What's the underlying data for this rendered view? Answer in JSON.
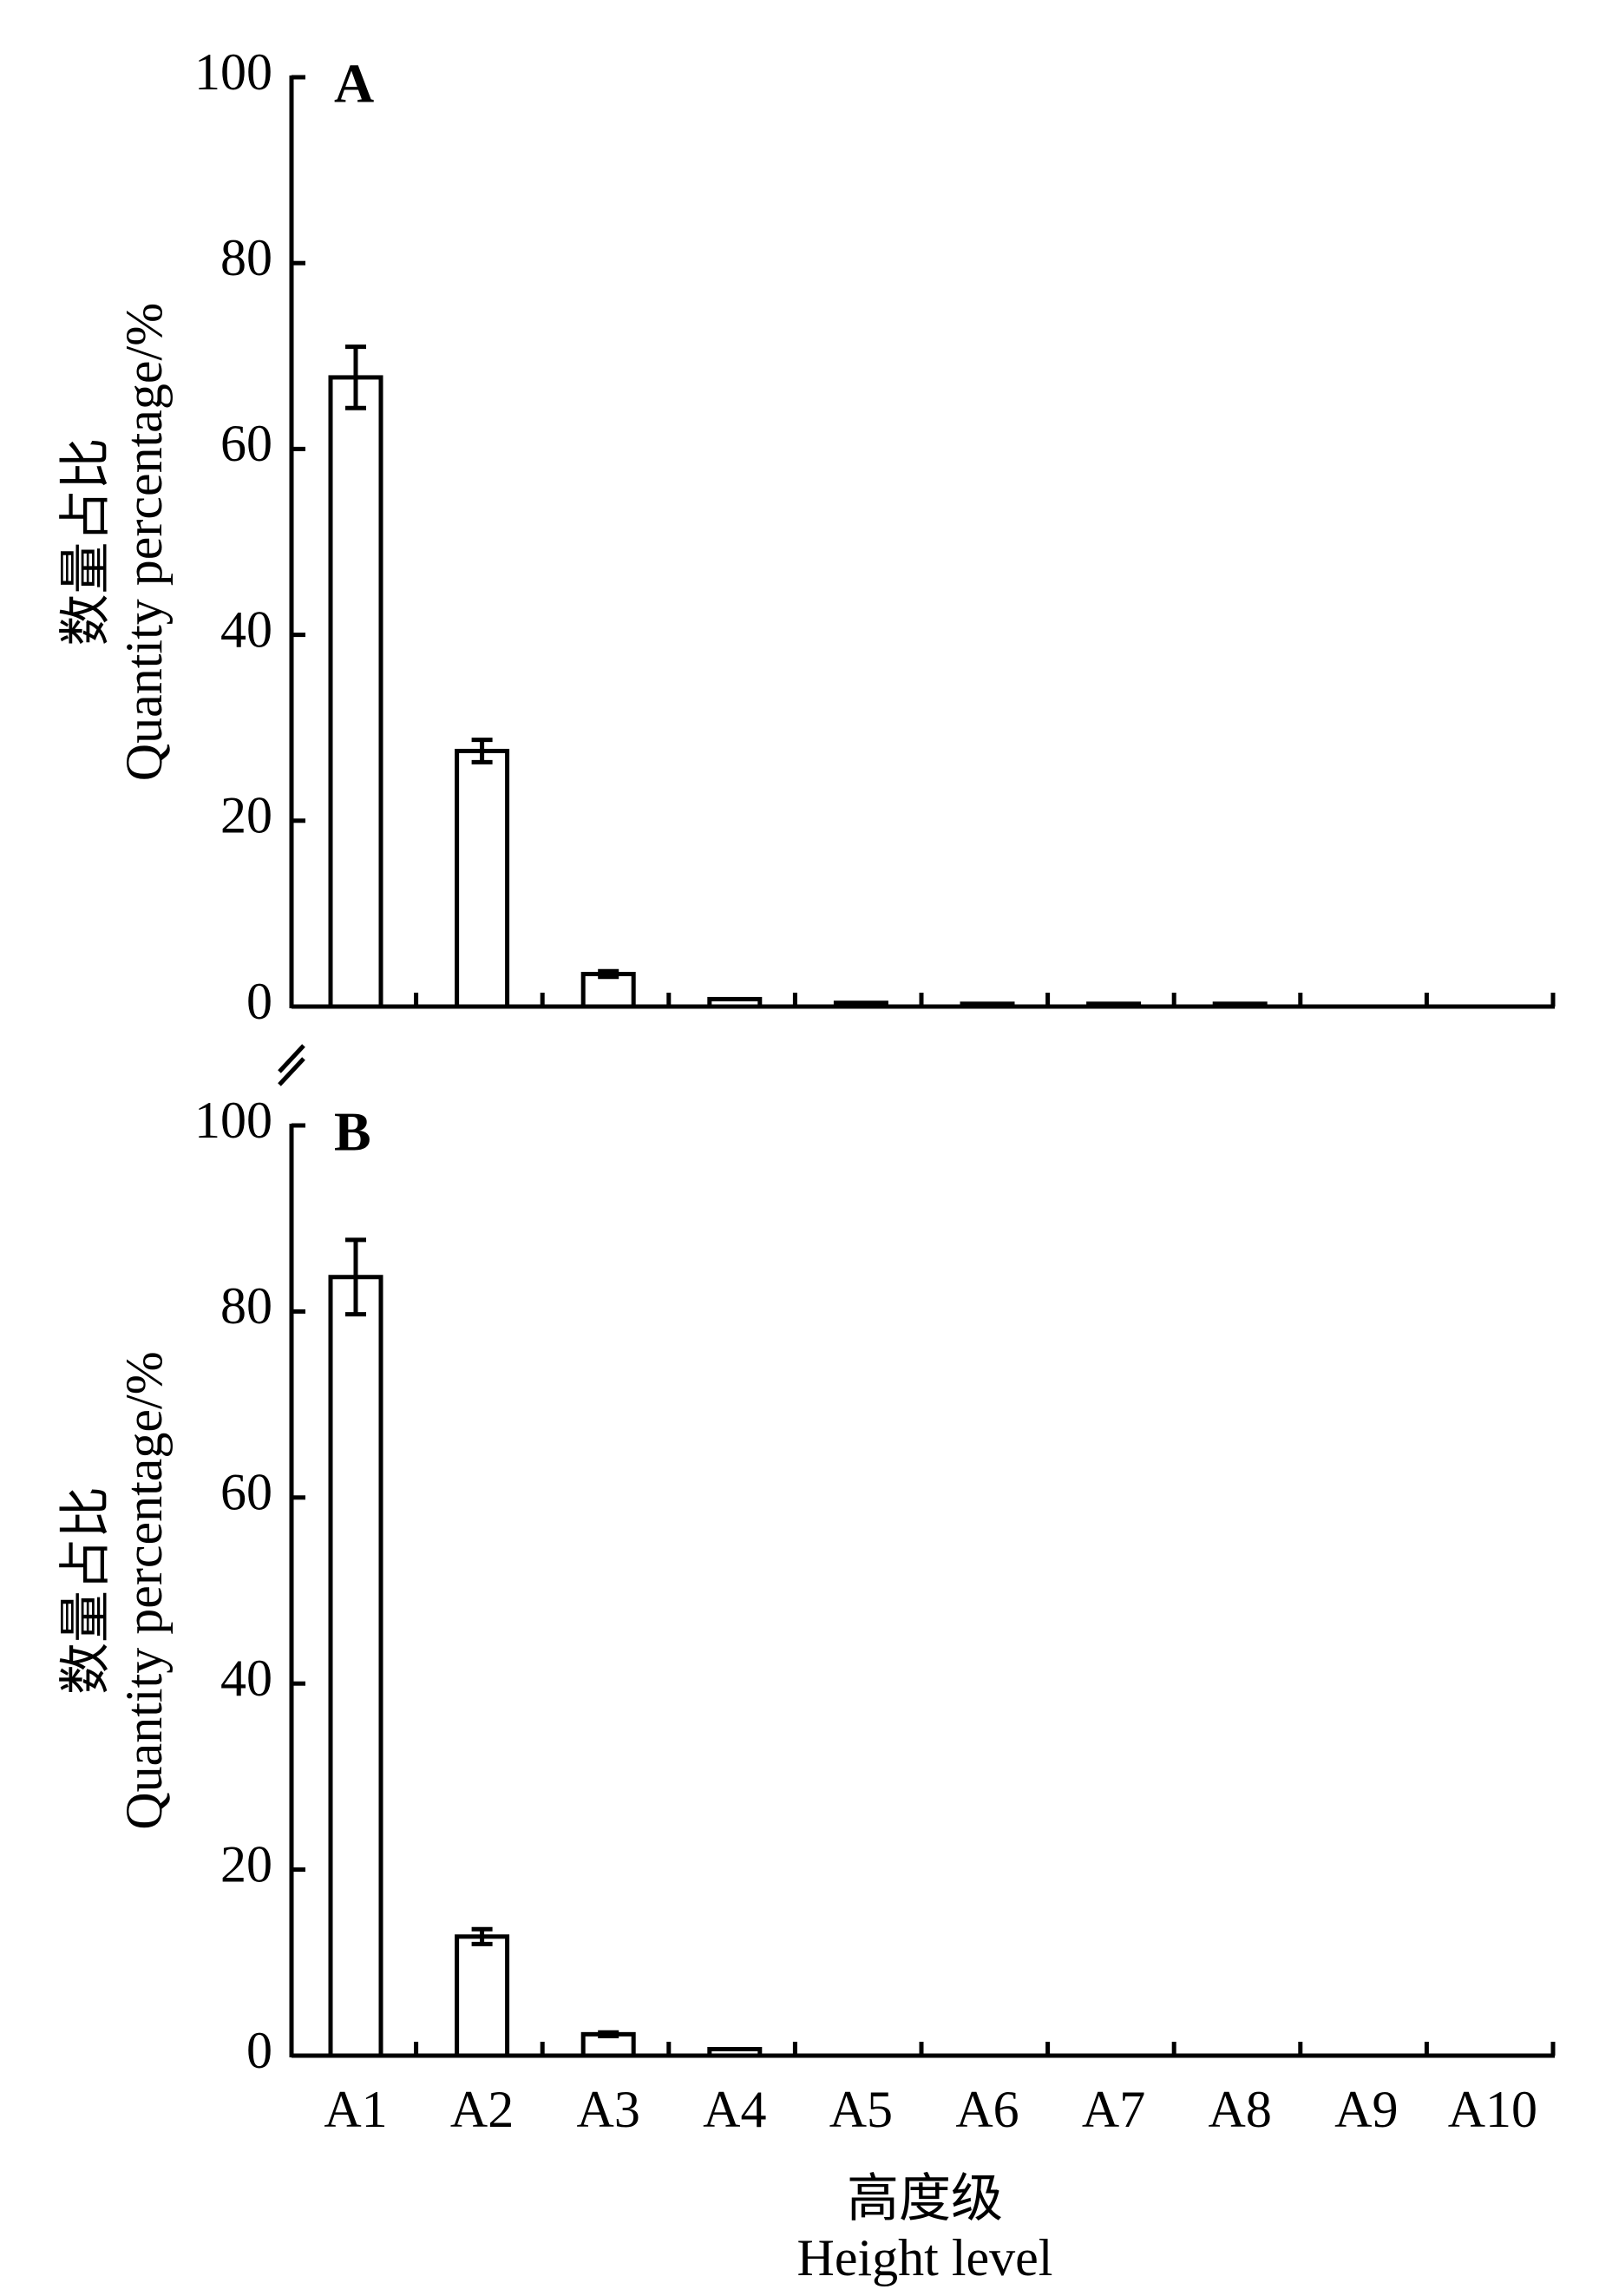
{
  "chart_data": [
    {
      "type": "bar",
      "panel_label": "A",
      "y_label": [
        "数量占比",
        "Quantity percentage/%"
      ],
      "values": [
        67.7,
        27.5,
        3.5,
        0.8,
        0.4,
        0.3,
        0.3,
        0.3,
        0,
        0
      ],
      "errors": [
        3.3,
        1.2,
        0.3,
        null,
        null,
        null,
        null,
        null,
        null,
        null
      ],
      "ylim": [
        0,
        100
      ],
      "yticks": [
        0,
        20,
        40,
        60,
        80,
        100
      ],
      "color": "#ffffff"
    },
    {
      "type": "bar",
      "panel_label": "B",
      "y_label": [
        "数量占比",
        "Quantity percentage/%"
      ],
      "x_label": [
        "高度级",
        "Height level"
      ],
      "categories": [
        "A1",
        "A2",
        "A3",
        "A4",
        "A5",
        "A6",
        "A7",
        "A8",
        "A9",
        "A10"
      ],
      "values": [
        83.7,
        12.8,
        2.3,
        0.7,
        0,
        0,
        0,
        0,
        0,
        0
      ],
      "errors": [
        4.0,
        0.8,
        0.2,
        null,
        null,
        null,
        null,
        null,
        null,
        null
      ],
      "ylim": [
        0,
        100
      ],
      "yticks": [
        0,
        20,
        40,
        60,
        80,
        100
      ],
      "color": "#ffffff"
    }
  ]
}
